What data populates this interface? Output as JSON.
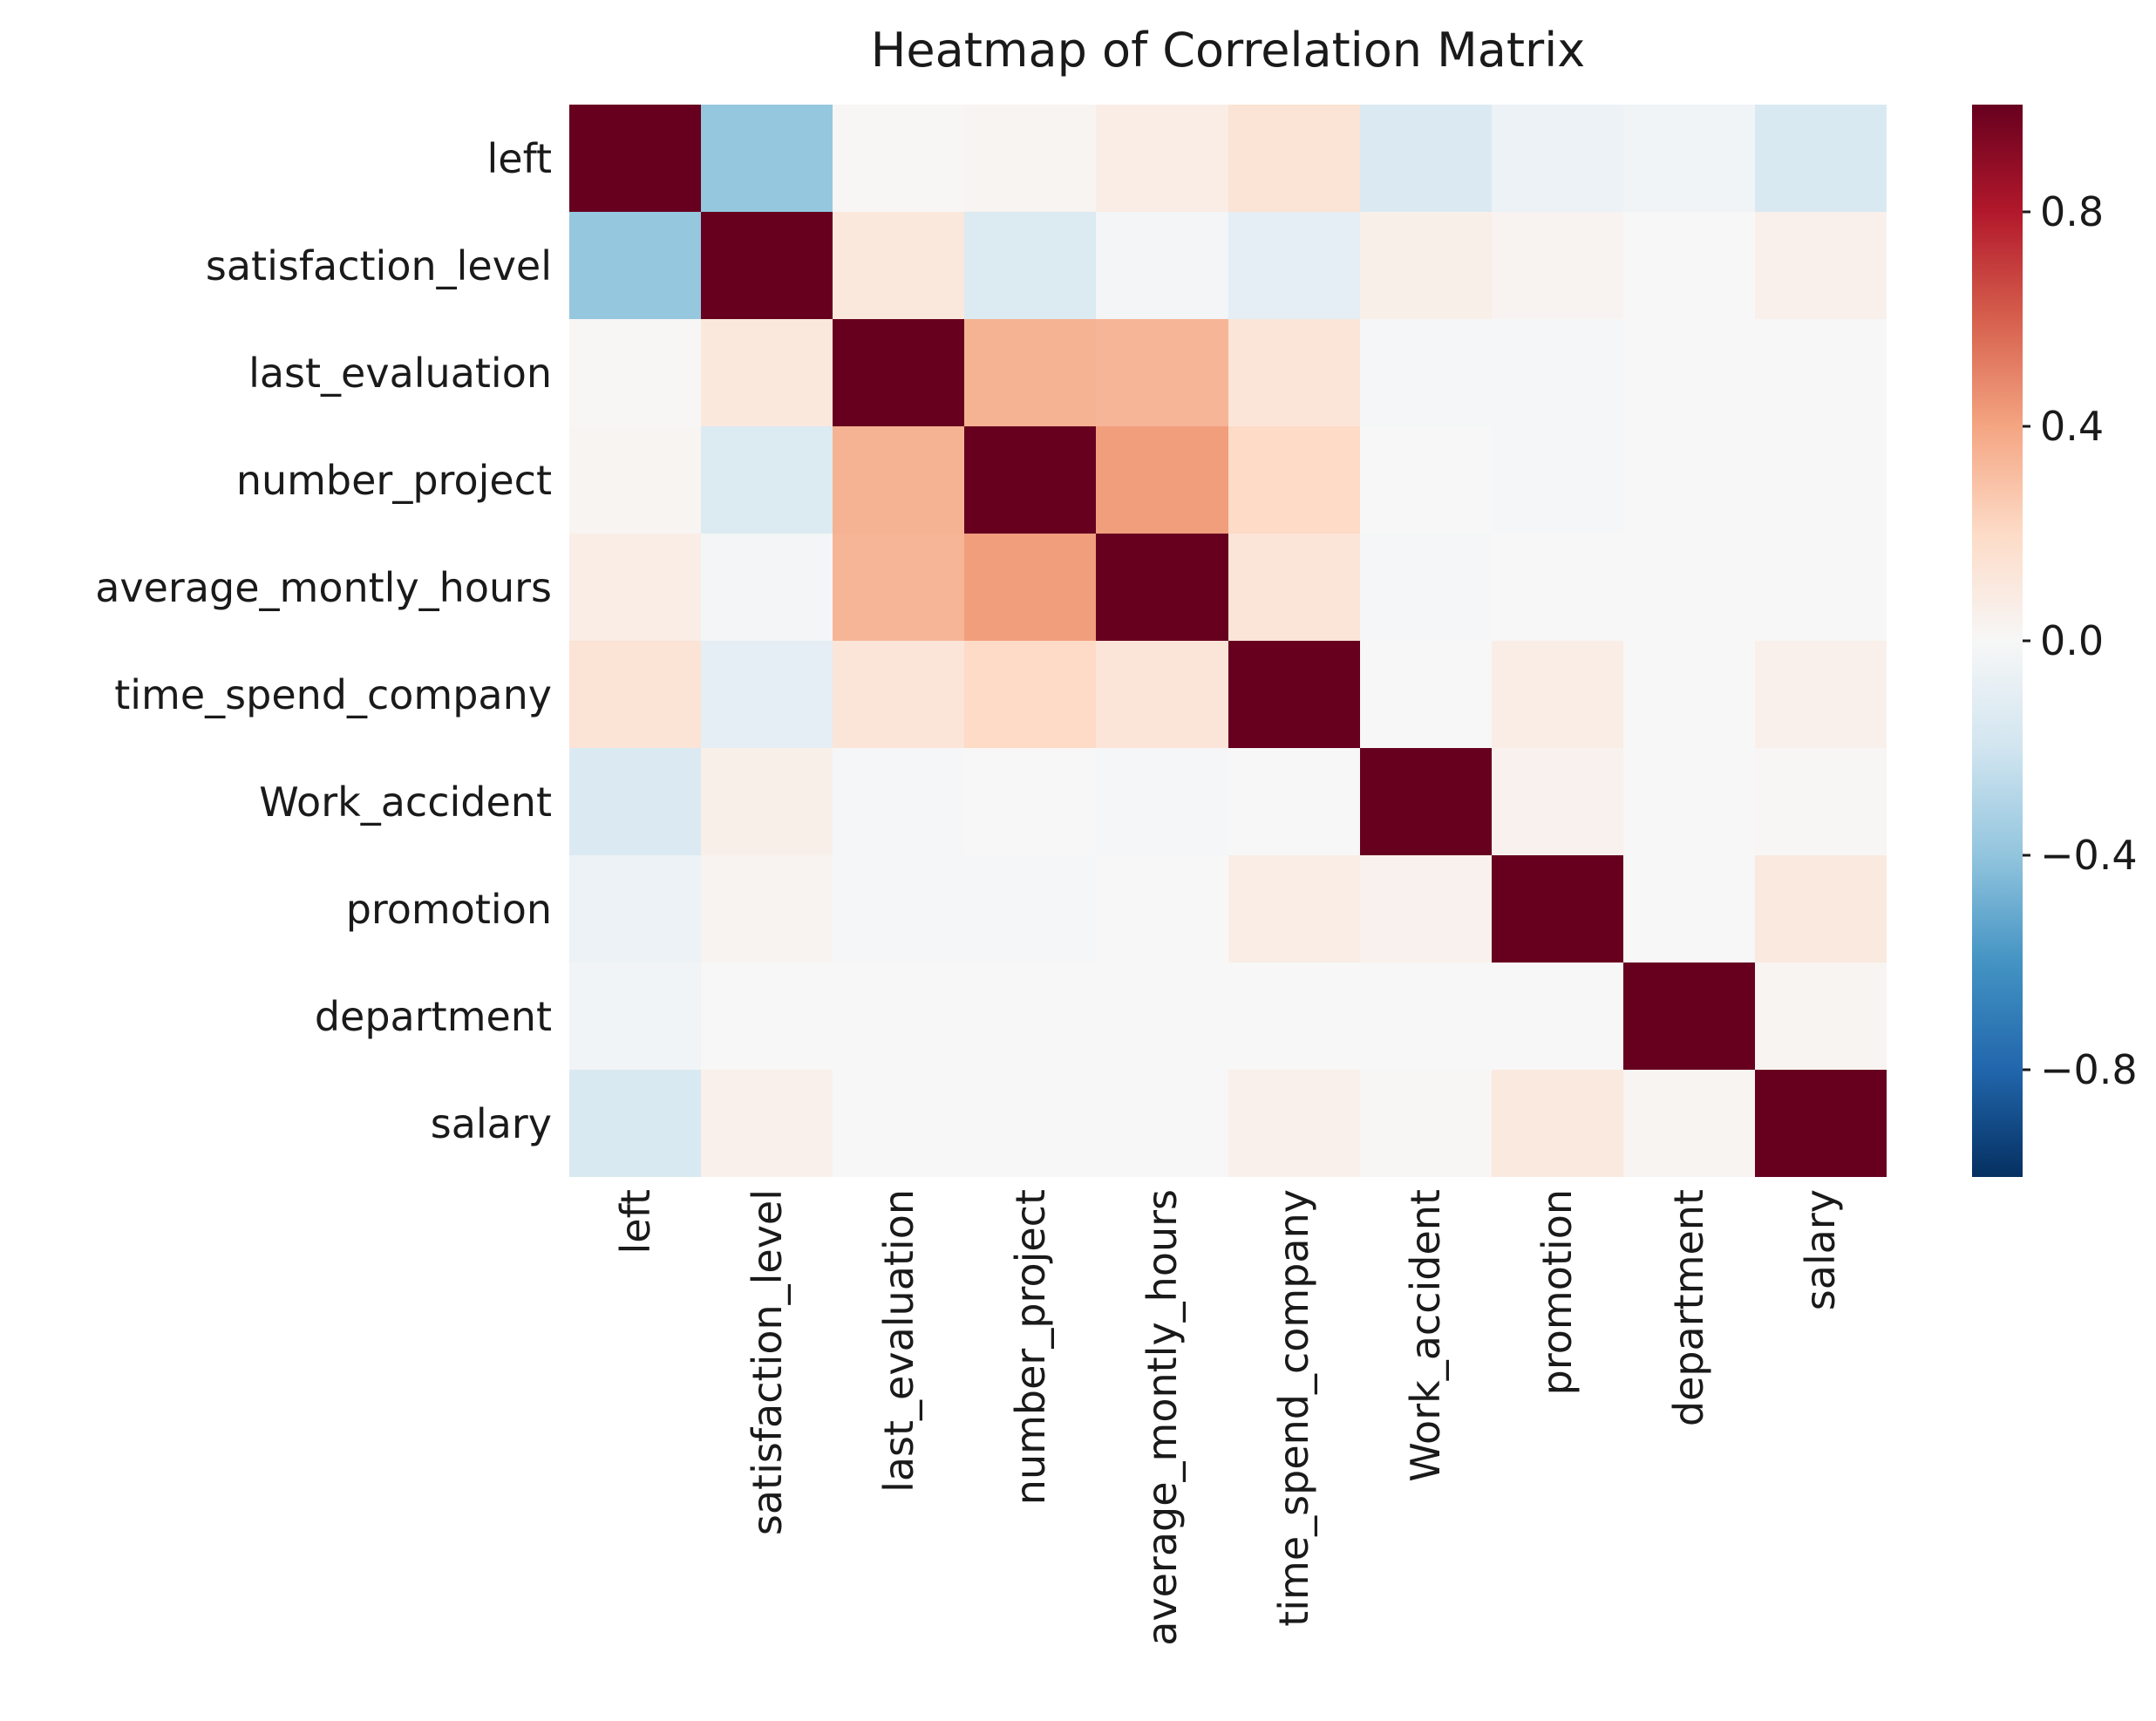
{
  "chart_data": {
    "type": "heatmap",
    "title": "Heatmap of Correlation Matrix",
    "labels": [
      "left",
      "satisfaction_level",
      "last_evaluation",
      "number_project",
      "average_montly_hours",
      "time_spend_company",
      "Work_accident",
      "promotion",
      "department",
      "salary"
    ],
    "matrix": [
      [
        1.0,
        -0.39,
        0.01,
        0.02,
        0.07,
        0.14,
        -0.15,
        -0.06,
        -0.03,
        -0.16
      ],
      [
        -0.39,
        1.0,
        0.11,
        -0.14,
        -0.02,
        -0.1,
        0.06,
        0.03,
        0.0,
        0.05
      ],
      [
        0.01,
        0.11,
        1.0,
        0.35,
        0.34,
        0.13,
        -0.01,
        -0.01,
        0.0,
        0.0
      ],
      [
        0.02,
        -0.14,
        0.35,
        1.0,
        0.42,
        0.2,
        0.0,
        -0.01,
        0.0,
        0.0
      ],
      [
        0.07,
        -0.02,
        0.34,
        0.42,
        1.0,
        0.13,
        -0.01,
        0.0,
        0.0,
        0.0
      ],
      [
        0.14,
        -0.1,
        0.13,
        0.2,
        0.13,
        1.0,
        0.0,
        0.07,
        0.0,
        0.05
      ],
      [
        -0.15,
        0.06,
        -0.01,
        0.0,
        -0.01,
        0.0,
        1.0,
        0.04,
        0.0,
        0.01
      ],
      [
        -0.06,
        0.03,
        -0.01,
        -0.01,
        0.0,
        0.07,
        0.04,
        1.0,
        0.0,
        0.1
      ],
      [
        -0.03,
        0.0,
        0.0,
        0.0,
        0.0,
        0.0,
        0.0,
        0.0,
        1.0,
        0.02
      ],
      [
        -0.16,
        0.05,
        0.0,
        0.0,
        0.0,
        0.05,
        0.01,
        0.1,
        0.02,
        1.0
      ]
    ],
    "colormap": "RdBu_r",
    "colormap_stops": [
      "#053061",
      "#2166ac",
      "#4393c3",
      "#92c5de",
      "#d1e5f0",
      "#f7f7f7",
      "#fddbc7",
      "#f4a582",
      "#d6604d",
      "#b2182b",
      "#67001f"
    ],
    "vmin": -1,
    "vmax": 1,
    "grid_on": false,
    "legend_position": "right",
    "colorbar_ticks": [
      {
        "value": 0.8,
        "label": "0.8"
      },
      {
        "value": 0.4,
        "label": "0.4"
      },
      {
        "value": 0.0,
        "label": "0.0"
      },
      {
        "value": -0.4,
        "label": "−0.4"
      },
      {
        "value": -0.8,
        "label": "−0.8"
      }
    ]
  }
}
